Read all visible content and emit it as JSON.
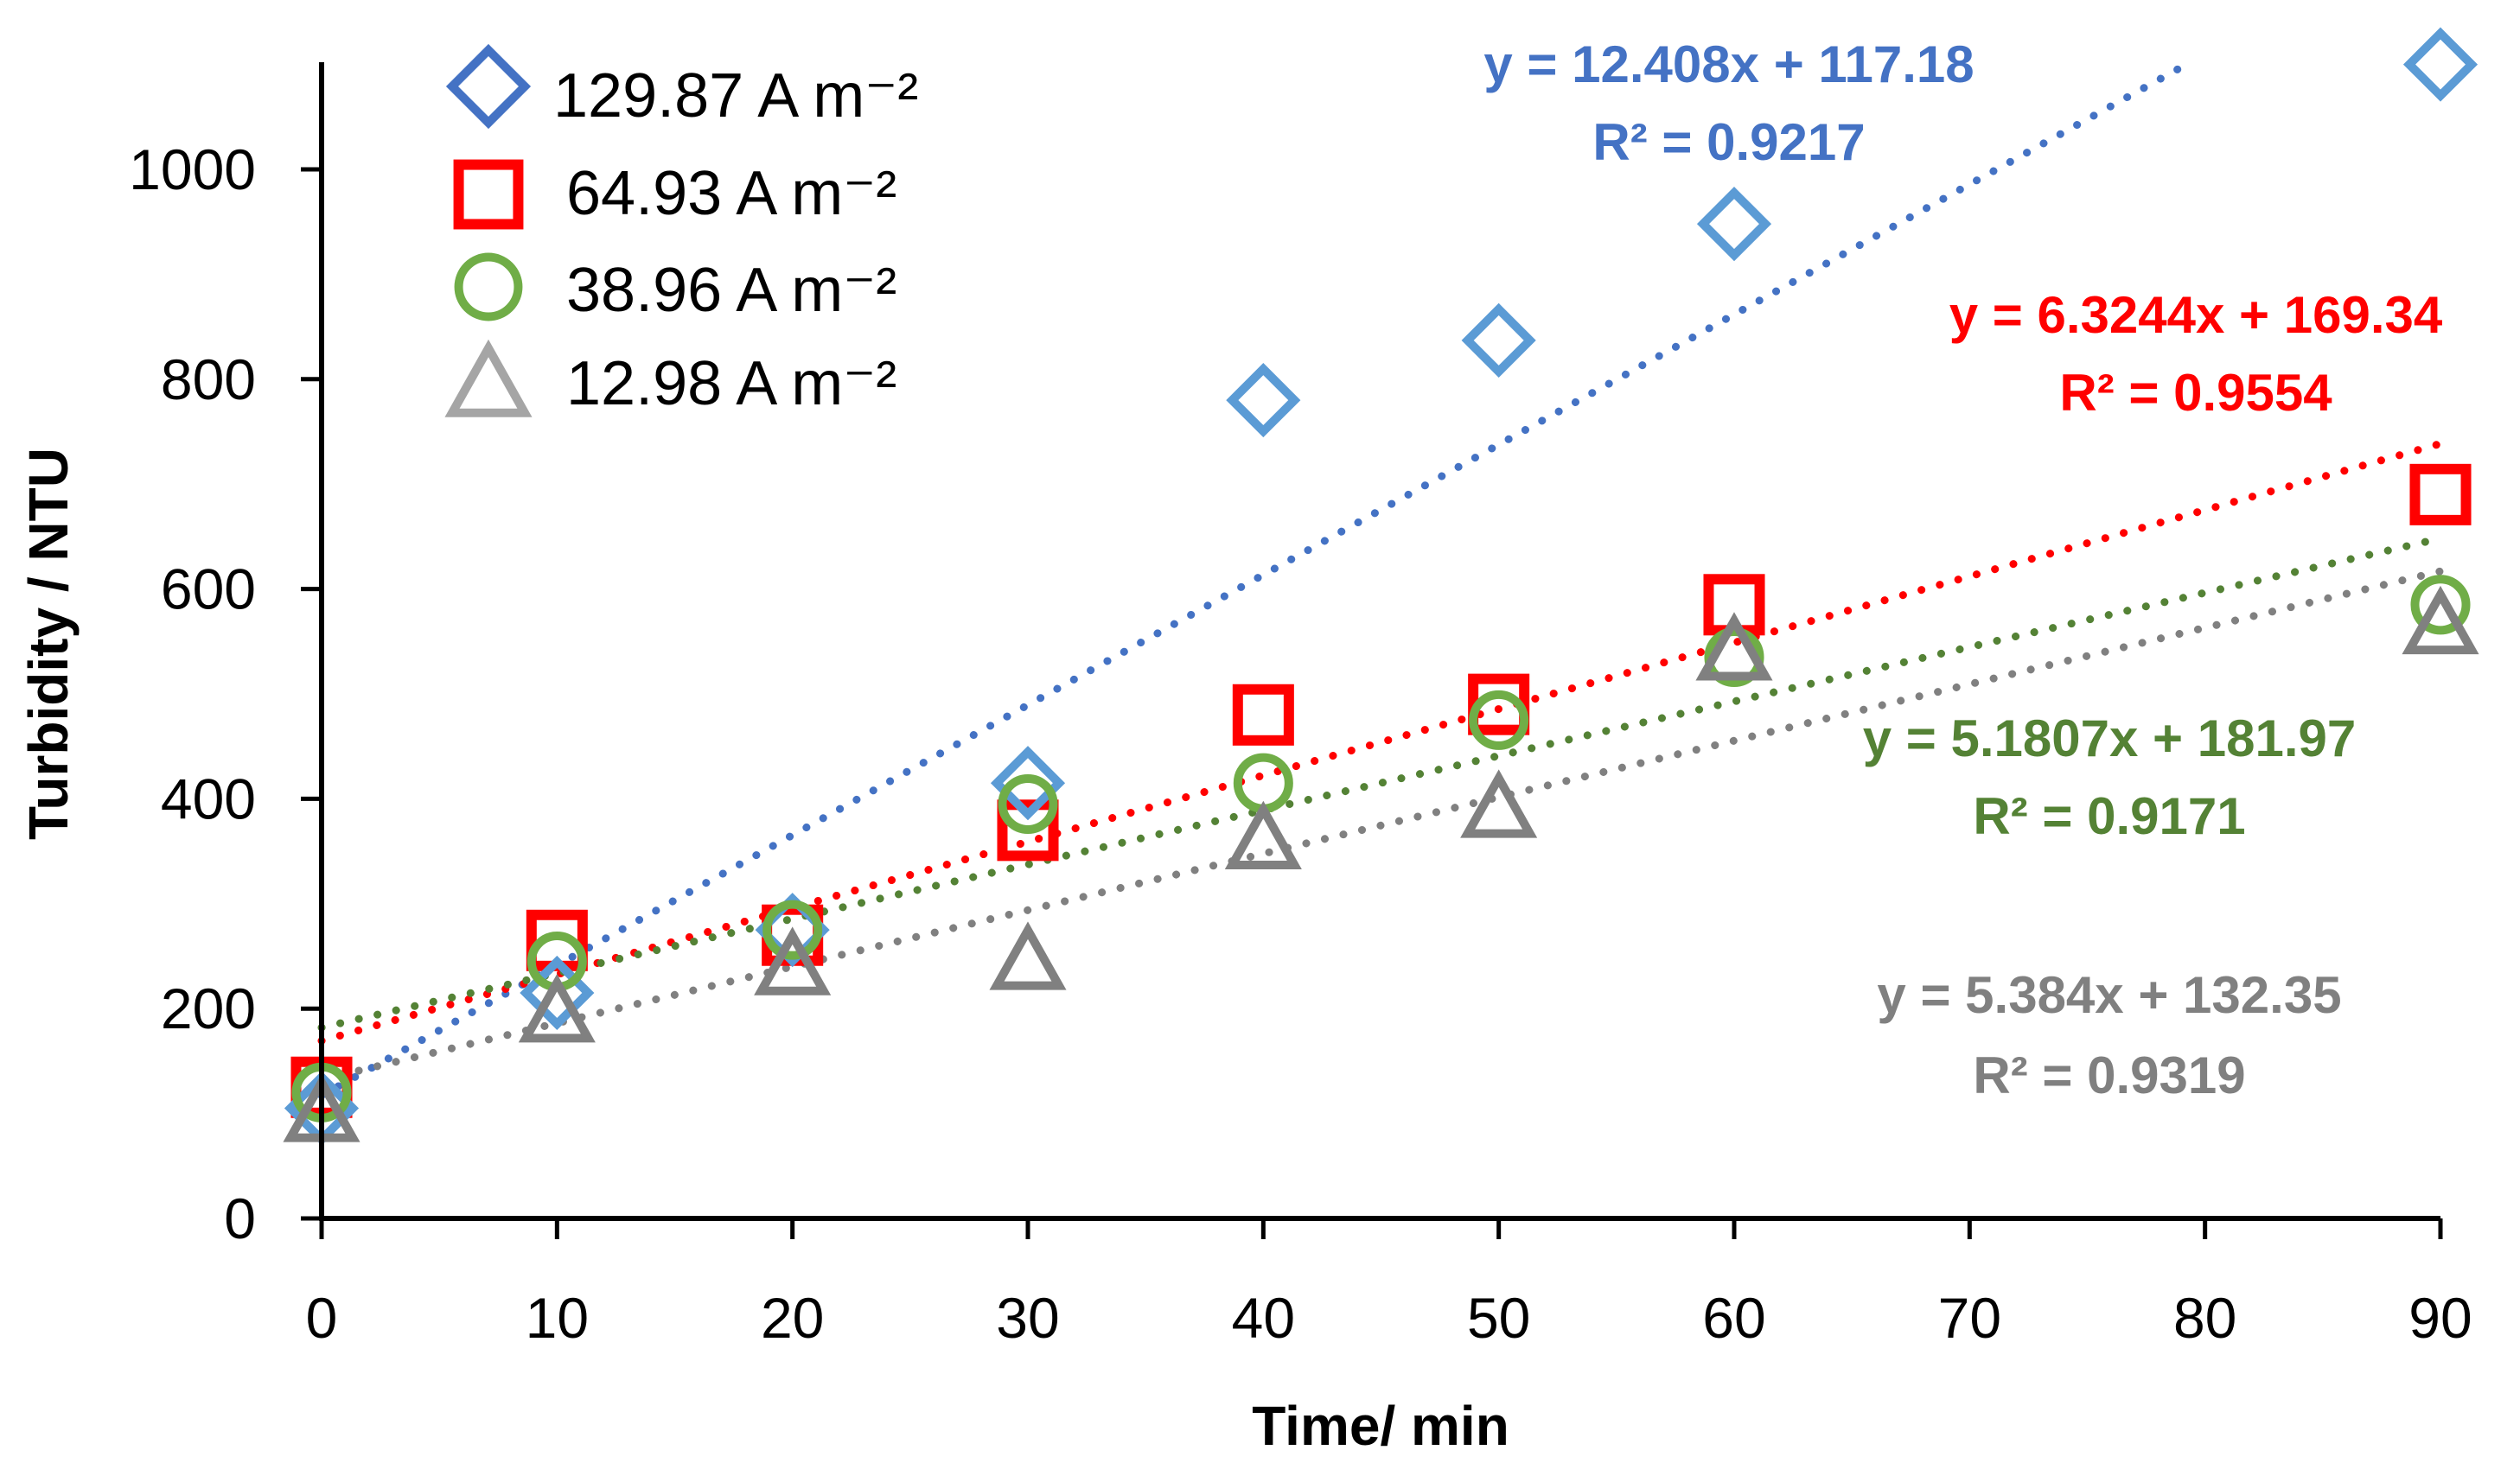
{
  "chart_data": {
    "type": "scatter",
    "xlabel": "Time/ min",
    "ylabel": "Turbidity / NTU",
    "xlim": [
      0,
      90
    ],
    "ylim": [
      0,
      1100
    ],
    "x_ticks": [
      {
        "label": "0",
        "pos": 0
      },
      {
        "label": "10",
        "pos": 10
      },
      {
        "label": "20",
        "pos": 20
      },
      {
        "label": "30",
        "pos": 30
      },
      {
        "label": "40",
        "pos": 40
      },
      {
        "label": "50",
        "pos": 50
      },
      {
        "label": "60",
        "pos": 60
      },
      {
        "label": "70",
        "pos": 70
      },
      {
        "label": "80",
        "pos": 80
      },
      {
        "label": "90",
        "pos": 90
      }
    ],
    "y_ticks": [
      0,
      200,
      400,
      600,
      800,
      1000
    ],
    "grid": false,
    "legend_position": "top-left",
    "series": [
      {
        "name": "129.87 A m⁻²",
        "marker": "diamond",
        "color": "#5B9BD5",
        "legend_color": "#4472C4",
        "trend_color": "#4472C4",
        "points": [
          [
            0,
            105
          ],
          [
            10,
            215
          ],
          [
            20,
            275
          ],
          [
            30,
            415
          ],
          [
            40,
            780
          ],
          [
            50,
            837
          ],
          [
            60,
            948
          ],
          [
            90,
            1100
          ]
        ],
        "trend": {
          "slope": 12.408,
          "intercept": 117.18
        },
        "equation": "y = 12.408x + 117.18",
        "r2": "R² = 0.9217",
        "label_color": "#4472C4"
      },
      {
        "name": "64.93  A m⁻²",
        "marker": "square",
        "color": "#FF0000",
        "legend_color": "#FF0000",
        "trend_color": "#FF0000",
        "points": [
          [
            0,
            125
          ],
          [
            10,
            265
          ],
          [
            20,
            270
          ],
          [
            30,
            370
          ],
          [
            40,
            480
          ],
          [
            50,
            490
          ],
          [
            60,
            585
          ],
          [
            90,
            690
          ]
        ],
        "trend": {
          "slope": 6.3244,
          "intercept": 169.34
        },
        "equation": "y = 6.3244x + 169.34",
        "r2": "R² = 0.9554",
        "label_color": "#FF0000"
      },
      {
        "name": "38.96  A m⁻²",
        "marker": "circle",
        "color": "#70AD47",
        "legend_color": "#70AD47",
        "trend_color": "#548235",
        "points": [
          [
            0,
            120
          ],
          [
            10,
            245
          ],
          [
            20,
            275
          ],
          [
            30,
            395
          ],
          [
            40,
            415
          ],
          [
            50,
            475
          ],
          [
            60,
            535
          ],
          [
            90,
            585
          ]
        ],
        "trend": {
          "slope": 5.1807,
          "intercept": 181.97
        },
        "equation": "y = 5.1807x + 181.97",
        "r2": "R² = 0.9171",
        "label_color": "#548235"
      },
      {
        "name": "12.98  A m⁻²",
        "marker": "triangle",
        "color": "#808080",
        "legend_color": "#A5A5A5",
        "trend_color": "#808080",
        "points": [
          [
            0,
            100
          ],
          [
            10,
            195
          ],
          [
            20,
            240
          ],
          [
            30,
            245
          ],
          [
            40,
            360
          ],
          [
            50,
            390
          ],
          [
            60,
            540
          ],
          [
            90,
            565
          ]
        ],
        "trend": {
          "slope": 5.384,
          "intercept": 132.35
        },
        "equation": "y = 5.384x + 132.35",
        "r2": "R² = 0.9319",
        "label_color": "#808080"
      }
    ]
  }
}
